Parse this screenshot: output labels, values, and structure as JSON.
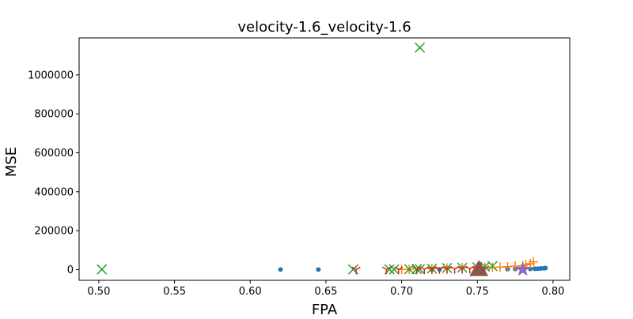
{
  "chart_data": {
    "type": "scatter",
    "title": "velocity-1.6_velocity-1.6",
    "xlabel": "FPA",
    "ylabel": "MSE",
    "xlim": [
      0.487,
      0.811
    ],
    "ylim": [
      -55000,
      1190000
    ],
    "xticks": [
      "0.50",
      "0.55",
      "0.60",
      "0.65",
      "0.70",
      "0.75",
      "0.80"
    ],
    "yticks": [
      "0",
      "200000",
      "400000",
      "600000",
      "800000",
      "1000000"
    ],
    "grid": false,
    "legend": "none",
    "series": [
      {
        "marker": "circle",
        "color": "#1f77b4",
        "x": [
          0.62,
          0.645,
          0.72,
          0.725,
          0.77,
          0.775,
          0.78,
          0.785,
          0.788,
          0.79,
          0.792,
          0.794,
          0.795
        ],
        "y": [
          500,
          500,
          800,
          900,
          2500,
          3000,
          3500,
          4000,
          4500,
          5000,
          6000,
          7000,
          8000
        ]
      },
      {
        "marker": "plus",
        "color": "#ff7f0e",
        "x": [
          0.7,
          0.705,
          0.72,
          0.73,
          0.74,
          0.75,
          0.755,
          0.76,
          0.765,
          0.77,
          0.775,
          0.78,
          0.782,
          0.785,
          0.787
        ],
        "y": [
          1000,
          1500,
          5000,
          8000,
          10000,
          9000,
          11000,
          12000,
          13000,
          15000,
          18000,
          20000,
          25000,
          30000,
          40000
        ]
      },
      {
        "marker": "x",
        "color": "#2ca02c",
        "x": [
          0.502,
          0.668,
          0.692,
          0.695,
          0.705,
          0.71,
          0.712,
          0.72,
          0.73,
          0.74,
          0.75,
          0.755,
          0.76,
          0.712
        ],
        "y": [
          1000,
          1000,
          1000,
          1000,
          2000,
          3000,
          2000,
          5000,
          8000,
          10000,
          12000,
          15000,
          18000,
          1140000
        ]
      },
      {
        "marker": "tri_down",
        "color": "#d62728",
        "x": [
          0.67,
          0.69,
          0.698,
          0.71,
          0.715,
          0.72,
          0.725,
          0.73,
          0.735,
          0.74,
          0.745,
          0.75,
          0.755
        ],
        "y": [
          500,
          800,
          800,
          1000,
          1500,
          2000,
          2500,
          3000,
          3500,
          4000,
          4500,
          5000,
          6000
        ]
      },
      {
        "marker": "star",
        "color": "#9467bd",
        "x": [
          0.78
        ],
        "y": [
          1000
        ]
      },
      {
        "marker": "triangle",
        "color": "#8c564b",
        "x": [
          0.751
        ],
        "y": [
          1000
        ]
      }
    ]
  }
}
